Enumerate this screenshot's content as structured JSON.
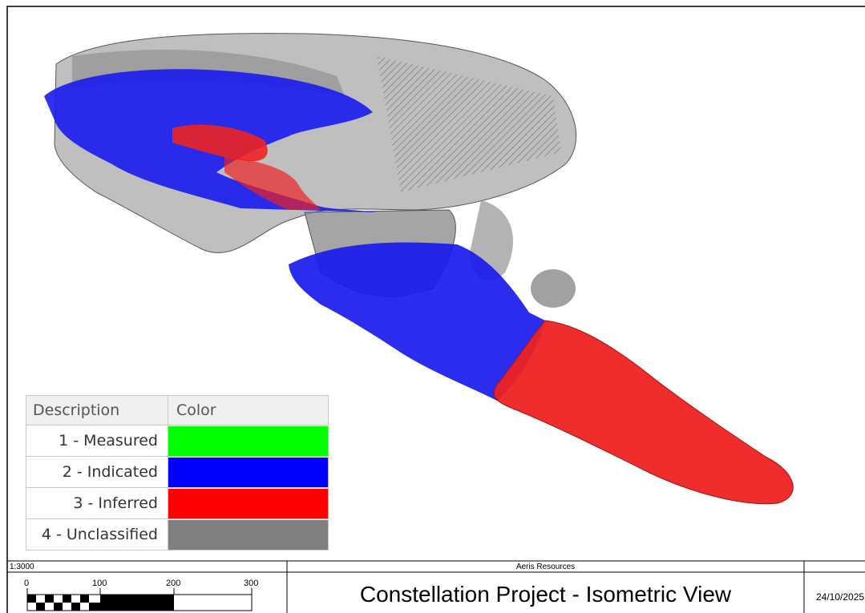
{
  "legend": {
    "header": {
      "description": "Description",
      "color": "Color"
    },
    "rows": [
      {
        "label": "1 - Measured",
        "color": "#00ff00"
      },
      {
        "label": "2 - Indicated",
        "color": "#0000ff"
      },
      {
        "label": "3 - Inferred",
        "color": "#ff0000"
      },
      {
        "label": "4 - Unclassified",
        "color": "#808080"
      }
    ]
  },
  "title_block": {
    "scale": "1:3000",
    "company": "Aeris Resources",
    "title": "Constellation Project - Isometric View",
    "date": "24/10/2025",
    "scale_bar": {
      "ticks": [
        "0",
        "100",
        "200",
        "300"
      ]
    }
  },
  "colors": {
    "indicated": "#1a1aee",
    "inferred": "#ee2222",
    "unclassified": "#8c8c8c"
  }
}
